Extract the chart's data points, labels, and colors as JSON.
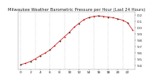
{
  "title": "Milwaukee Weather Barometric Pressure per Hour (Last 24 Hours)",
  "hours": [
    0,
    1,
    2,
    3,
    4,
    5,
    6,
    7,
    8,
    9,
    10,
    11,
    12,
    13,
    14,
    15,
    16,
    17,
    18,
    19,
    20,
    21,
    22,
    23
  ],
  "pressure": [
    29.42,
    29.44,
    29.47,
    29.51,
    29.56,
    29.6,
    29.65,
    29.72,
    29.79,
    29.86,
    29.93,
    30.01,
    30.07,
    30.13,
    30.16,
    30.18,
    30.19,
    30.18,
    30.17,
    30.16,
    30.14,
    30.12,
    30.08,
    29.97
  ],
  "ylim": [
    29.35,
    30.25
  ],
  "yticks": [
    29.4,
    29.5,
    29.6,
    29.7,
    29.8,
    29.9,
    30.0,
    30.1,
    30.2
  ],
  "ytick_labels": [
    "9.4",
    "9.5",
    "9.6",
    "9.7",
    "9.8",
    "9.9",
    "0.0",
    "0.1",
    "0.2"
  ],
  "line_color": "#cc0000",
  "dot_color_black": "#222222",
  "dot_color_red": "#cc0000",
  "background_color": "#ffffff",
  "grid_color": "#999999",
  "title_color": "#222222",
  "title_fontsize": 3.8,
  "tick_fontsize": 3.2,
  "marker_size": 1.2,
  "line_width": 0.5,
  "xtick_positions": [
    0,
    2,
    4,
    6,
    8,
    10,
    12,
    14,
    16,
    18,
    20,
    22
  ],
  "xtick_labels": [
    "0",
    "2",
    "4",
    "6",
    "8",
    "10",
    "12",
    "14",
    "16",
    "18",
    "20",
    "22"
  ],
  "vgrid_positions": [
    0,
    3,
    6,
    9,
    12,
    15,
    18,
    21
  ]
}
